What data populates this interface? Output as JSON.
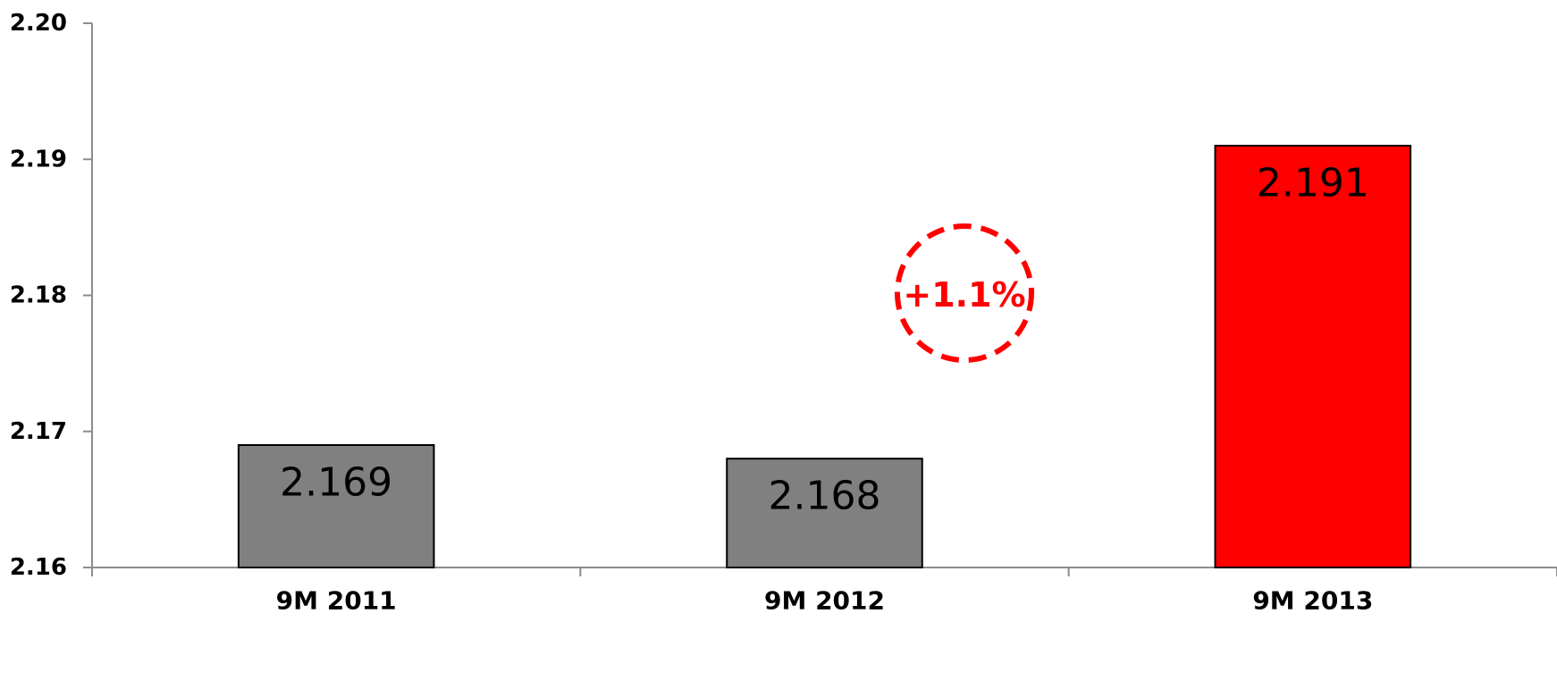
{
  "chart_data": {
    "type": "bar",
    "categories": [
      "9M 2011",
      "9M 2012",
      "9M 2013"
    ],
    "values": [
      2.169,
      2.168,
      2.191
    ],
    "data_labels": [
      "2.169",
      "2.168",
      "2.191"
    ],
    "bar_colors": [
      "#808080",
      "#808080",
      "#ff0000"
    ],
    "ylim": [
      2.16,
      2.2
    ],
    "yticks": [
      2.16,
      2.17,
      2.18,
      2.19,
      2.2
    ],
    "ytick_labels": [
      "2.16",
      "2.17",
      "2.18",
      "2.19",
      "2.20"
    ],
    "grid": false,
    "annotation": {
      "text": "+1.1%",
      "color": "#ff0000"
    },
    "title": "",
    "xlabel": "",
    "ylabel": ""
  }
}
